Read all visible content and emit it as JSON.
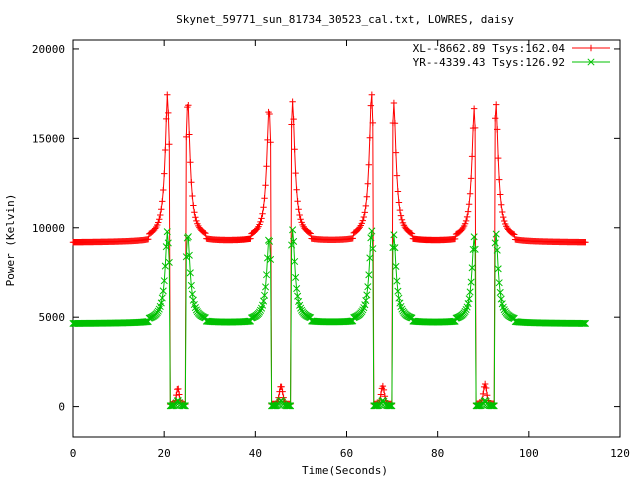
{
  "chart_data": {
    "type": "line",
    "title": "Skynet_59771_sun_81734_30523_cal.txt, LOWRES, daisy",
    "xlabel": "Time(Seconds)",
    "ylabel": "Power (Kelvin)",
    "xlim": [
      0,
      120
    ],
    "ylim": [
      -1700,
      20500
    ],
    "xticks": [
      0,
      20,
      40,
      60,
      80,
      100,
      120
    ],
    "yticks": [
      0,
      5000,
      10000,
      15000,
      20000
    ],
    "xtick_labels": [
      "0",
      "20",
      "40",
      "60",
      "80",
      "100",
      "120"
    ],
    "ytick_labels": [
      "0",
      "5000",
      "10000",
      "15000",
      "20000"
    ],
    "grid": false,
    "legend_position": "top-right",
    "series": [
      {
        "name": "XL--8662.89 Tsys:162.04",
        "color": "#ff0000",
        "marker": "plus",
        "baseline": 8800,
        "x_end": 112.5,
        "bumps": [
          {
            "x": 20.7,
            "peak": 17000,
            "width": 0.28
          },
          {
            "x": 25.2,
            "peak": 16700,
            "width": 0.28
          },
          {
            "x": 43.0,
            "peak": 16300,
            "width": 0.28
          },
          {
            "x": 48.2,
            "peak": 16600,
            "width": 0.28
          },
          {
            "x": 65.5,
            "peak": 17100,
            "width": 0.28
          },
          {
            "x": 70.4,
            "peak": 16500,
            "width": 0.28
          },
          {
            "x": 88.0,
            "peak": 16200,
            "width": 0.28
          },
          {
            "x": 92.8,
            "peak": 16500,
            "width": 0.28
          }
        ],
        "dips": [
          {
            "from": 21.2,
            "to": 24.8,
            "level": 900
          },
          {
            "from": 43.5,
            "to": 47.8,
            "level": 1000
          },
          {
            "from": 65.9,
            "to": 70.0,
            "level": 1000
          },
          {
            "from": 88.4,
            "to": 92.4,
            "level": 1100
          }
        ]
      },
      {
        "name": "YR--4339.43 Tsys:126.92",
        "color": "#00c000",
        "marker": "cross",
        "baseline": 4400,
        "x_end": 112.5,
        "bumps": [
          {
            "x": 20.7,
            "peak": 9500,
            "width": 0.28
          },
          {
            "x": 25.2,
            "peak": 9400,
            "width": 0.28
          },
          {
            "x": 43.0,
            "peak": 9200,
            "width": 0.28
          },
          {
            "x": 48.2,
            "peak": 9600,
            "width": 0.28
          },
          {
            "x": 65.5,
            "peak": 9600,
            "width": 0.28
          },
          {
            "x": 70.4,
            "peak": 9300,
            "width": 0.28
          },
          {
            "x": 88.0,
            "peak": 9200,
            "width": 0.28
          },
          {
            "x": 92.8,
            "peak": 9400,
            "width": 0.28
          }
        ],
        "dips": [
          {
            "from": 21.2,
            "to": 24.8,
            "level": 300
          },
          {
            "from": 43.5,
            "to": 47.8,
            "level": 300
          },
          {
            "from": 65.9,
            "to": 70.0,
            "level": 300
          },
          {
            "from": 88.4,
            "to": 92.4,
            "level": 300
          }
        ]
      }
    ]
  }
}
